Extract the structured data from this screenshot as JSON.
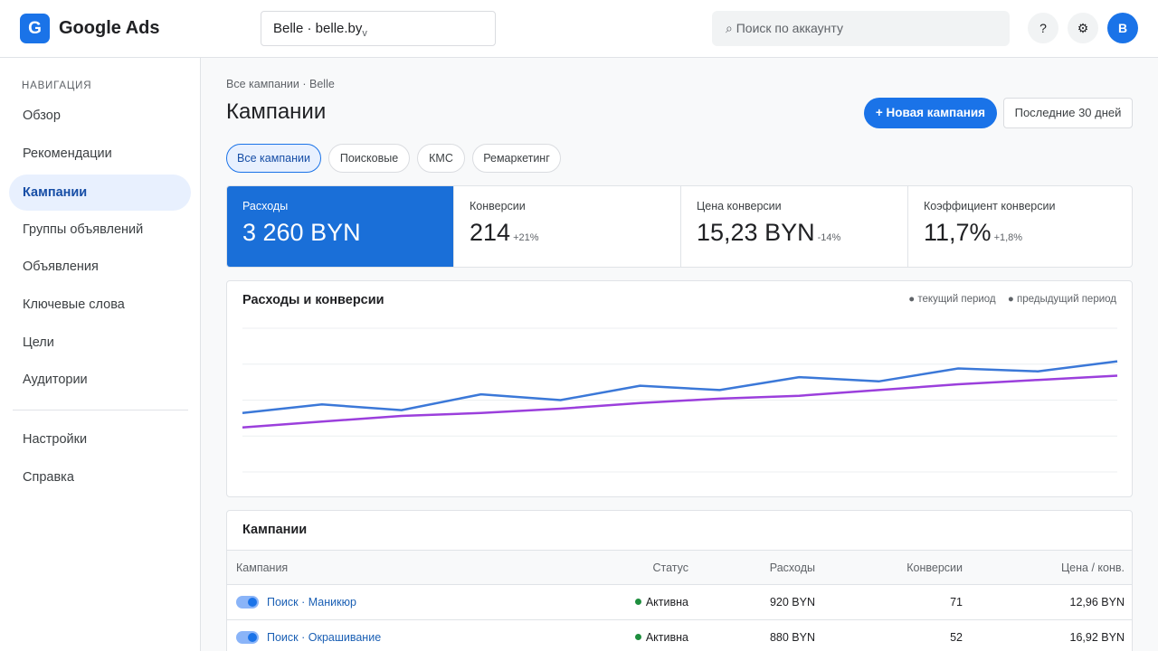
{
  "header": {
    "logo_letter": "G",
    "app_title": "Google Ads",
    "account": "Belle · belle.by",
    "search_placeholder": "⌕ Поиск по аккаунту",
    "help": "?",
    "settings": "⚙",
    "avatar": "B"
  },
  "sidebar": {
    "heading": "НАВИГАЦИЯ",
    "items": [
      {
        "label": "Обзор"
      },
      {
        "label": "Рекомендации"
      },
      {
        "label": "Кампании"
      },
      {
        "label": "Группы объявлений"
      },
      {
        "label": "Объявления"
      },
      {
        "label": "Ключевые слова"
      },
      {
        "label": "Цели"
      },
      {
        "label": "Аудитории"
      }
    ],
    "secondary": [
      {
        "label": "Настройки"
      },
      {
        "label": "Справка"
      }
    ],
    "active": "Кампании"
  },
  "main": {
    "breadcrumb": "Все кампании · Belle",
    "title": "Кампании",
    "new_campaign": "+ Новая кампания",
    "date_range": "Последние 30 дней",
    "filters": [
      "Все кампании",
      "Поисковые",
      "КМС",
      "Ремаркетинг"
    ],
    "active_filter": "Все кампании"
  },
  "kpis": [
    {
      "label": "Расходы",
      "value": "3 260 BYN",
      "delta": ""
    },
    {
      "label": "Конверсии",
      "value": "214",
      "delta": "+21%"
    },
    {
      "label": "Цена конверсии",
      "value": "15,23 BYN",
      "delta": "-14%"
    },
    {
      "label": "Коэффициент конверсии",
      "value": "11,7%",
      "delta": "+1,8%"
    }
  ],
  "chart": {
    "title": "Расходы и конверсии",
    "legend_current": "● текущий период",
    "legend_previous": "● предыдущий период",
    "colors": {
      "current": "#3b78d8",
      "previous": "#9b3fdc",
      "grid": "#eceff1"
    }
  },
  "chart_data": {
    "type": "line",
    "series": [
      {
        "name": "текущий период",
        "values": [
          41,
          47,
          43,
          54,
          50,
          60,
          57,
          66,
          63,
          72,
          70,
          77
        ]
      },
      {
        "name": "предыдущий период",
        "values": [
          31,
          35,
          39,
          41,
          44,
          48,
          51,
          53,
          57,
          61,
          64,
          67
        ]
      }
    ],
    "ylim": [
      0,
      100
    ],
    "grid": true
  },
  "campaigns_table": {
    "title": "Кампании",
    "columns": [
      "Кампания",
      "Статус",
      "Расходы",
      "Конверсии",
      "Цена / конв."
    ],
    "rows": [
      {
        "name": "Поиск · Маникюр",
        "status": "Активна",
        "spend": "920 BYN",
        "conversions": "71",
        "cpa": "12,96 BYN"
      },
      {
        "name": "Поиск · Окрашивание",
        "status": "Активна",
        "spend": "880 BYN",
        "conversions": "52",
        "cpa": "16,92 BYN"
      }
    ]
  }
}
